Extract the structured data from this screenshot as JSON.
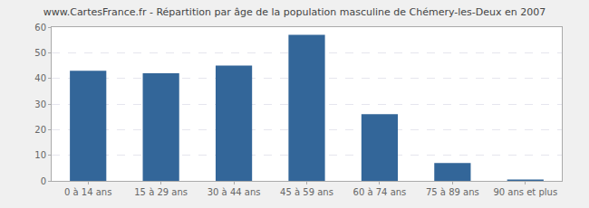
{
  "chart_data": {
    "type": "bar",
    "title": "www.CartesFrance.fr - Répartition par âge de la population masculine de Chémery-les-Deux en 2007",
    "categories": [
      "0 à 14 ans",
      "15 à 29 ans",
      "30 à 44 ans",
      "45 à 59 ans",
      "60 à 74 ans",
      "75 à 89 ans",
      "90 ans et plus"
    ],
    "values": [
      43,
      42,
      45,
      57,
      26,
      7,
      0.5
    ],
    "color": "#336699",
    "ylim": [
      0,
      60
    ],
    "yticks": [
      0,
      10,
      20,
      30,
      40,
      50,
      60
    ],
    "grid": true
  }
}
